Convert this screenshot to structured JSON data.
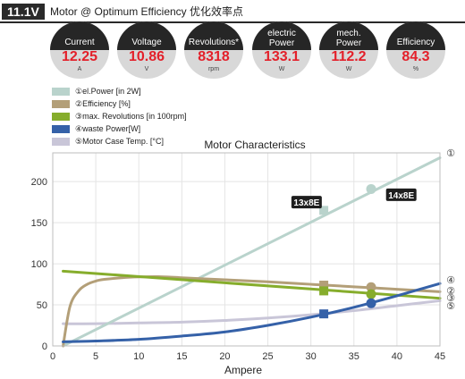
{
  "header": {
    "voltage_badge": "11.1V",
    "title": "Motor @ Optimum Efficiency  优化效率点"
  },
  "gauges": [
    {
      "label_lines": [
        "Current"
      ],
      "value": "12.25",
      "unit": "A"
    },
    {
      "label_lines": [
        "Voltage"
      ],
      "value": "10.86",
      "unit": "V"
    },
    {
      "label_lines": [
        "Revolutions*"
      ],
      "value": "8318",
      "unit": "rpm"
    },
    {
      "label_lines": [
        "electric",
        "Power"
      ],
      "value": "133.1",
      "unit": "W"
    },
    {
      "label_lines": [
        "mech.",
        "Power"
      ],
      "value": "112.2",
      "unit": "W"
    },
    {
      "label_lines": [
        "Efficiency"
      ],
      "value": "84.3",
      "unit": "%"
    }
  ],
  "colors": {
    "el_power": "#b9d3cc",
    "efficiency": "#b39f78",
    "revolutions": "#86ad2c",
    "waste_power": "#3561a8",
    "case_temp": "#c9c6d8",
    "gauge_value": "#e3202a"
  },
  "chart_data": {
    "type": "line",
    "title": "Motor Characteristics",
    "xlabel": "Ampere",
    "ylabel": "",
    "xlim": [
      0,
      45
    ],
    "ylim": [
      0,
      235
    ],
    "xticks": [
      0,
      5,
      10,
      15,
      20,
      25,
      30,
      35,
      40,
      45
    ],
    "yticks": [
      0,
      50,
      100,
      150,
      200
    ],
    "grid": true,
    "legend_position": "top-left",
    "series": [
      {
        "name": "①el.Power [in 2W]",
        "marker": "①",
        "color_key": "el_power",
        "x": [
          1.2,
          45
        ],
        "y": [
          0,
          229
        ]
      },
      {
        "name": "②Efficiency [%]",
        "marker": "②",
        "color_key": "efficiency",
        "x": [
          1.2,
          2,
          3,
          4,
          5,
          6,
          8,
          10,
          12.25,
          15,
          20,
          25,
          30,
          35,
          40,
          45
        ],
        "y": [
          0,
          48,
          67,
          75,
          79,
          81,
          83,
          84,
          84.3,
          83,
          80.5,
          78,
          75,
          72,
          69,
          66
        ]
      },
      {
        "name": "③max. Revolutions [in 100rpm]",
        "marker": "③",
        "color_key": "revolutions",
        "x": [
          1.2,
          45
        ],
        "y": [
          91,
          58
        ]
      },
      {
        "name": "④waste Power[W]",
        "marker": "④",
        "color_key": "waste_power",
        "x": [
          1.2,
          5,
          10,
          15,
          20,
          25,
          30,
          35,
          40,
          45
        ],
        "y": [
          5,
          6,
          8,
          12,
          17,
          25,
          35,
          47,
          61,
          76
        ]
      },
      {
        "name": "⑤Motor Case Temp. [°C]",
        "marker": "⑤",
        "color_key": "case_temp",
        "x": [
          1.2,
          5,
          10,
          15,
          20,
          25,
          30,
          35,
          40,
          45
        ],
        "y": [
          27,
          27,
          28,
          29,
          31,
          34,
          38,
          43,
          49,
          55
        ]
      }
    ],
    "markers": [
      {
        "series": 0,
        "x": 31.5,
        "y": 165,
        "shape": "square"
      },
      {
        "series": 0,
        "x": 37,
        "y": 191,
        "shape": "circle"
      },
      {
        "series": 1,
        "x": 31.5,
        "y": 74,
        "shape": "square"
      },
      {
        "series": 1,
        "x": 37,
        "y": 71.5,
        "shape": "circle"
      },
      {
        "series": 2,
        "x": 31.5,
        "y": 67,
        "shape": "square"
      },
      {
        "series": 2,
        "x": 37,
        "y": 63,
        "shape": "circle"
      },
      {
        "series": 3,
        "x": 31.5,
        "y": 39,
        "shape": "square"
      },
      {
        "series": 3,
        "x": 37,
        "y": 52,
        "shape": "circle"
      }
    ],
    "annotations": [
      {
        "text": "13x8E",
        "x": 29.5,
        "y": 175
      },
      {
        "text": "14x8E",
        "x": 40.5,
        "y": 184
      }
    ]
  }
}
